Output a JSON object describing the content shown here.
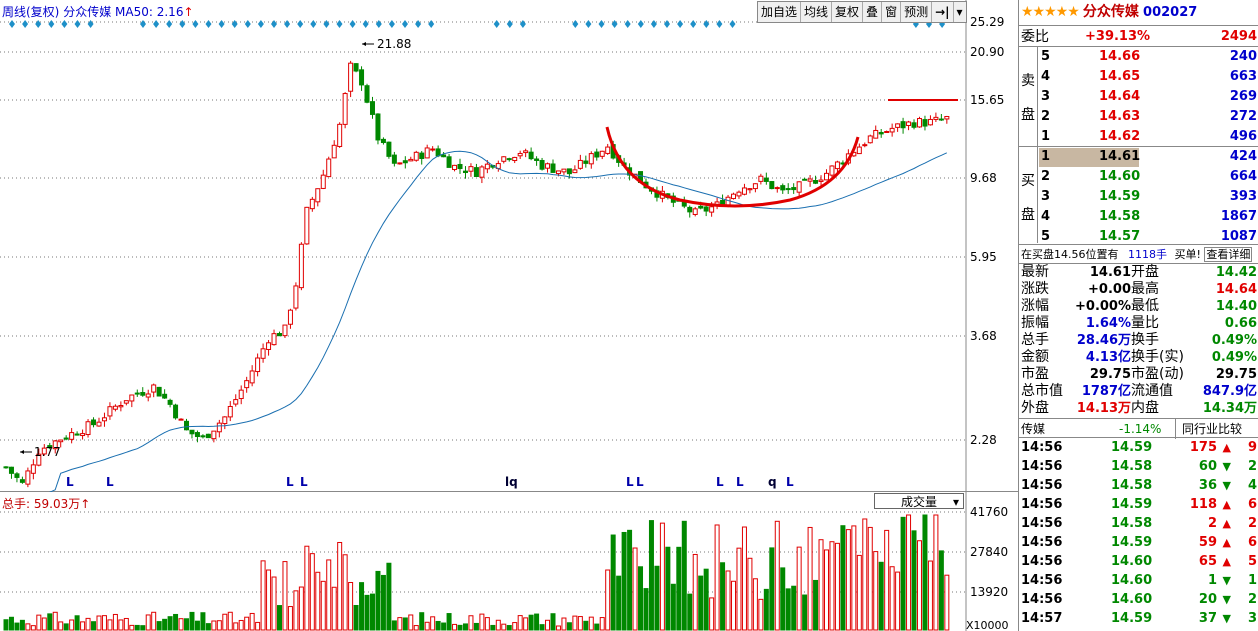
{
  "header": {
    "period": "周线(复权)",
    "name": "分众传媒",
    "ma_label": "MA50: 2.16",
    "ma_arrow": "↑"
  },
  "toolbar": {
    "items": [
      "加自选",
      "均线",
      "复权",
      "叠",
      "窗",
      "预测"
    ],
    "nav_icon": "→|",
    "menu_icon": "▾"
  },
  "price_axis": {
    "labels": [
      "25.29",
      "20.90",
      "15.65",
      "9.68",
      "5.95",
      "3.68",
      "2.28"
    ]
  },
  "annotations": {
    "high_label": "21.88",
    "low_label": "1.77"
  },
  "markers": [
    {
      "text": "L"
    },
    {
      "text": "L"
    },
    {
      "text": "L"
    },
    {
      "text": "L"
    },
    {
      "text": "lq"
    },
    {
      "text": "L"
    },
    {
      "text": "L"
    },
    {
      "text": "L"
    },
    {
      "text": "L"
    },
    {
      "text": "q"
    },
    {
      "text": "L"
    }
  ],
  "volume": {
    "label": "总手: 59.03万",
    "arrow": "↑",
    "selector": "成交量",
    "axis": [
      "41760",
      "27840",
      "13920"
    ],
    "unit": "X10000"
  },
  "stock": {
    "stars": "★★★★★",
    "name": "分众传媒",
    "code": "002027"
  },
  "weibi": {
    "label": "委比",
    "pct": "+39.13%",
    "diff": "2494"
  },
  "sell_label": [
    "卖",
    "盘"
  ],
  "buy_label": [
    "买",
    "盘"
  ],
  "sell": [
    {
      "lvl": "5",
      "price": "14.66",
      "vol": "240"
    },
    {
      "lvl": "4",
      "price": "14.65",
      "vol": "663"
    },
    {
      "lvl": "3",
      "price": "14.64",
      "vol": "269"
    },
    {
      "lvl": "2",
      "price": "14.63",
      "vol": "272"
    },
    {
      "lvl": "1",
      "price": "14.62",
      "vol": "496"
    }
  ],
  "buy": [
    {
      "lvl": "1",
      "price": "14.61",
      "vol": "424"
    },
    {
      "lvl": "2",
      "price": "14.60",
      "vol": "664"
    },
    {
      "lvl": "3",
      "price": "14.59",
      "vol": "393"
    },
    {
      "lvl": "4",
      "price": "14.58",
      "vol": "1867"
    },
    {
      "lvl": "5",
      "price": "14.57",
      "vol": "1087"
    }
  ],
  "notice": {
    "text1": "在买盘14.56位置有",
    "text2": "1118手",
    "text3": "买单!",
    "link": "查看详细"
  },
  "stats": [
    {
      "l1": "最新",
      "v1": "14.61",
      "c1": "black",
      "l2": "开盘",
      "v2": "14.42",
      "c2": "green"
    },
    {
      "l1": "涨跌",
      "v1": "+0.00",
      "c1": "black",
      "l2": "最高",
      "v2": "14.64",
      "c2": "red"
    },
    {
      "l1": "涨幅",
      "v1": "+0.00%",
      "c1": "black",
      "l2": "最低",
      "v2": "14.40",
      "c2": "green"
    },
    {
      "l1": "振幅",
      "v1": "1.64%",
      "c1": "blue",
      "l2": "量比",
      "v2": "0.66",
      "c2": "green"
    },
    {
      "l1": "总手",
      "v1": "28.46万",
      "c1": "blue",
      "l2": "换手",
      "v2": "0.49%",
      "c2": "green"
    },
    {
      "l1": "金额",
      "v1": "4.13亿",
      "c1": "blue",
      "l2": "换手(实)",
      "v2": "0.49%",
      "c2": "green"
    },
    {
      "l1": "市盈",
      "v1": "29.75",
      "c1": "black",
      "l2": "市盈(动)",
      "v2": "29.75",
      "c2": "black"
    },
    {
      "l1": "总市值",
      "v1": "1787亿",
      "c1": "blue",
      "l2": "流通值",
      "v2": "847.9亿",
      "c2": "blue"
    },
    {
      "l1": "外盘",
      "v1": "14.13万",
      "c1": "red",
      "l2": "内盘",
      "v2": "14.34万",
      "c2": "green"
    }
  ],
  "industry": {
    "name": "传媒",
    "pct": "-1.14%",
    "compare": "同行业比较"
  },
  "trades": [
    {
      "time": "14:56",
      "price": "14.59",
      "vol": "175",
      "dir": "up",
      "n": "9"
    },
    {
      "time": "14:56",
      "price": "14.58",
      "vol": "60",
      "dir": "down",
      "n": "2"
    },
    {
      "time": "14:56",
      "price": "14.58",
      "vol": "36",
      "dir": "down",
      "n": "4"
    },
    {
      "time": "14:56",
      "price": "14.59",
      "vol": "118",
      "dir": "up",
      "n": "6"
    },
    {
      "time": "14:56",
      "price": "14.58",
      "vol": "2",
      "dir": "up",
      "n": "2"
    },
    {
      "time": "14:56",
      "price": "14.59",
      "vol": "59",
      "dir": "up",
      "n": "6"
    },
    {
      "time": "14:56",
      "price": "14.60",
      "vol": "65",
      "dir": "up",
      "n": "5"
    },
    {
      "time": "14:56",
      "price": "14.60",
      "vol": "1",
      "dir": "down",
      "n": "1"
    },
    {
      "time": "14:56",
      "price": "14.60",
      "vol": "20",
      "dir": "down",
      "n": "2"
    },
    {
      "time": "14:57",
      "price": "14.59",
      "vol": "37",
      "dir": "down",
      "n": "3"
    }
  ],
  "colors": {
    "up": "#e00000",
    "down": "#008800",
    "ma": "#1a6fb0",
    "accent": "#0099cc"
  }
}
